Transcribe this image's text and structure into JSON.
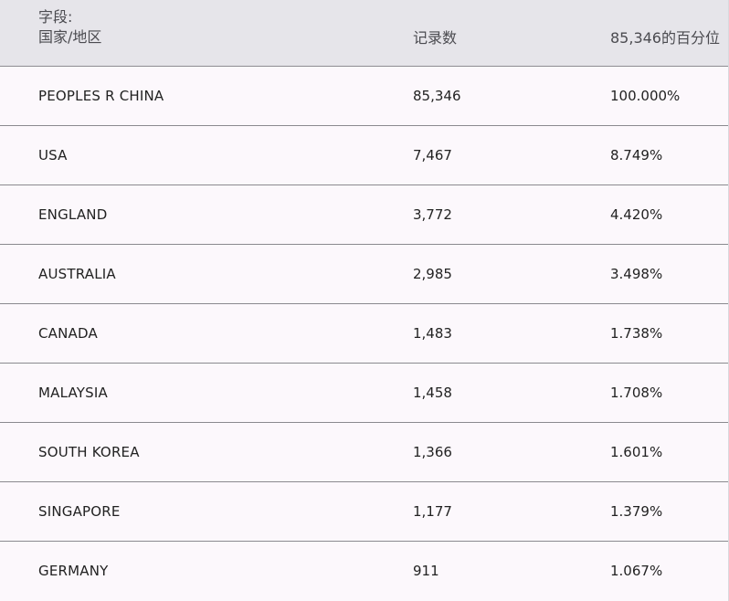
{
  "header": {
    "field_label": "字段:",
    "field_name": "国家/地区",
    "count_label": "记录数",
    "percent_label": "85,346的百分位"
  },
  "rows": [
    {
      "name": "PEOPLES R CHINA",
      "count": "85,346",
      "percent": "100.000%"
    },
    {
      "name": "USA",
      "count": "7,467",
      "percent": "8.749%"
    },
    {
      "name": "ENGLAND",
      "count": "3,772",
      "percent": "4.420%"
    },
    {
      "name": "AUSTRALIA",
      "count": "2,985",
      "percent": "3.498%"
    },
    {
      "name": "CANADA",
      "count": "1,483",
      "percent": "1.738%"
    },
    {
      "name": "MALAYSIA",
      "count": "1,458",
      "percent": "1.708%"
    },
    {
      "name": "SOUTH KOREA",
      "count": "1,366",
      "percent": "1.601%"
    },
    {
      "name": "SINGAPORE",
      "count": "1,177",
      "percent": "1.379%"
    },
    {
      "name": "GERMANY",
      "count": "911",
      "percent": "1.067%"
    }
  ],
  "colors": {
    "header_bg": "#e6e5ea",
    "row_bg": "#fcf8fc",
    "divider": "#8a8a8f",
    "text": "#222222",
    "header_text": "#4b4b50"
  }
}
